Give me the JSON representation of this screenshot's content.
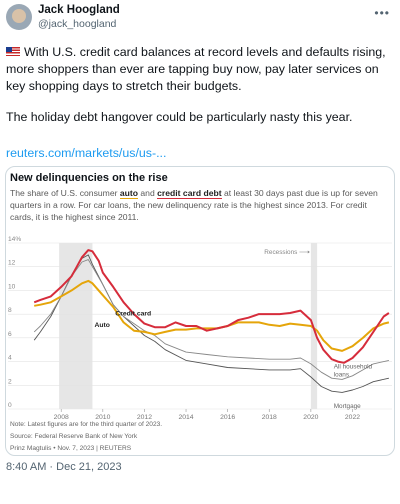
{
  "tweet": {
    "author_name": "Jack Hoogland",
    "author_handle": "@jack_hoogland",
    "more_icon": "more-icon",
    "text_p1": "With U.S. credit card balances at record levels and defaults rising, more shoppers than ever are tapping buy now, pay later services on key shopping days to stretch their budgets.",
    "text_p2": "The holiday debt hangover could be particularly nasty this year.",
    "link_text": "reuters.com/markets/us/us-...",
    "timestamp": "8:40 AM · Dec 21, 2023"
  },
  "card": {
    "title": "New delinquencies on the rise",
    "subtitle_a": "The share of U.S. consumer ",
    "subtitle_auto": "auto",
    "subtitle_b": " and ",
    "subtitle_cc": "credit card debt",
    "subtitle_c": " at least 30 days past due is up for seven quarters in a row. For car loans, the new delinquency rate is the highest since 2013. For credit cards, it is the highest since 2011.",
    "note": "Note: Latest figures are for the third quarter of 2023.",
    "source": "Source: Federal Reserve Bank of New York",
    "credit": "Prinz Magtulis • Nov. 7, 2023 | REUTERS"
  },
  "chart_data": {
    "type": "line",
    "ylim": [
      0,
      14
    ],
    "yticks": [
      "14%",
      "12",
      "10",
      "8",
      "6",
      "4",
      "2",
      "0"
    ],
    "xticks": [
      "2008",
      "2010",
      "2012",
      "2014",
      "2016",
      "2018",
      "2020",
      "2022"
    ],
    "xlim": [
      2006.5,
      2023.9
    ],
    "recession_label": "Recessions",
    "recessions": [
      [
        2007.9,
        2009.5
      ],
      [
        2020.0,
        2020.3
      ]
    ],
    "colors": {
      "credit_card": "#d62c3b",
      "auto": "#e5a50a",
      "all_household": "#888888",
      "mortgage": "#555555",
      "recession": "#e6e6e6"
    },
    "series": [
      {
        "name": "Credit card",
        "x": [
          2006.7,
          2007,
          2007.5,
          2008,
          2008.5,
          2009,
          2009.3,
          2009.5,
          2009.8,
          2010,
          2010.5,
          2011,
          2011.5,
          2012,
          2012.5,
          2013,
          2013.5,
          2014,
          2014.5,
          2015,
          2015.5,
          2016,
          2016.5,
          2017,
          2017.5,
          2018,
          2018.5,
          2019,
          2019.5,
          2020,
          2020.3,
          2020.6,
          2021,
          2021.3,
          2021.6,
          2022,
          2022.5,
          2023,
          2023.5,
          2023.75
        ],
        "values": [
          9.0,
          9.2,
          9.5,
          10.3,
          11.2,
          12.8,
          13.4,
          13.3,
          12.5,
          11.5,
          10.3,
          9.0,
          8.0,
          7.2,
          6.9,
          6.9,
          7.3,
          7.0,
          7.0,
          6.6,
          6.8,
          7.0,
          7.5,
          7.7,
          8.0,
          8.0,
          8.0,
          8.1,
          8.3,
          7.5,
          6.0,
          5.0,
          4.2,
          4.0,
          3.9,
          4.3,
          5.2,
          6.5,
          7.8,
          8.1
        ]
      },
      {
        "name": "Auto",
        "x": [
          2006.7,
          2007,
          2007.5,
          2008,
          2008.5,
          2009,
          2009.3,
          2009.5,
          2010,
          2010.5,
          2011,
          2011.5,
          2012,
          2012.5,
          2013,
          2013.5,
          2014,
          2014.5,
          2015,
          2015.5,
          2016,
          2016.5,
          2017,
          2017.5,
          2018,
          2018.5,
          2019,
          2019.5,
          2020,
          2020.3,
          2020.6,
          2021,
          2021.5,
          2022,
          2022.5,
          2023,
          2023.5,
          2023.75
        ],
        "values": [
          8.7,
          8.8,
          9.0,
          9.5,
          10.0,
          10.6,
          10.8,
          10.6,
          9.6,
          8.6,
          7.3,
          6.6,
          6.5,
          6.3,
          6.5,
          6.7,
          6.7,
          6.8,
          6.8,
          6.8,
          7.0,
          7.3,
          7.3,
          7.3,
          7.1,
          7.0,
          7.2,
          7.1,
          7.0,
          6.6,
          5.8,
          5.1,
          4.9,
          5.3,
          6.0,
          6.8,
          7.2,
          7.3
        ]
      },
      {
        "name": "All household loans",
        "x": [
          2006.7,
          2007,
          2007.5,
          2008,
          2008.5,
          2009,
          2009.3,
          2009.5,
          2010,
          2010.5,
          2011,
          2011.5,
          2012,
          2012.5,
          2013,
          2014,
          2015,
          2016,
          2017,
          2018,
          2019,
          2019.5,
          2020,
          2020.5,
          2021,
          2021.5,
          2022,
          2022.5,
          2023,
          2023.75
        ],
        "values": [
          6.5,
          7.0,
          8.0,
          9.5,
          11.2,
          12.4,
          12.6,
          12.0,
          10.5,
          8.8,
          7.8,
          7.2,
          6.6,
          6.2,
          5.5,
          4.8,
          4.6,
          4.4,
          4.3,
          4.2,
          4.2,
          4.3,
          3.8,
          3.1,
          2.6,
          2.5,
          2.8,
          3.3,
          3.8,
          4.1
        ]
      },
      {
        "name": "Mortgage",
        "x": [
          2006.7,
          2007,
          2007.5,
          2008,
          2008.5,
          2009,
          2009.3,
          2009.5,
          2010,
          2010.5,
          2011,
          2011.5,
          2012,
          2012.5,
          2013,
          2014,
          2015,
          2016,
          2017,
          2018,
          2019,
          2019.5,
          2020,
          2020.5,
          2021,
          2021.5,
          2022,
          2022.5,
          2023,
          2023.75
        ],
        "values": [
          5.8,
          6.5,
          7.8,
          9.5,
          11.3,
          12.7,
          13.0,
          12.2,
          10.5,
          8.8,
          7.8,
          7.0,
          6.2,
          5.7,
          5.0,
          4.1,
          3.8,
          3.5,
          3.4,
          3.3,
          3.3,
          3.4,
          2.7,
          1.9,
          1.5,
          1.4,
          1.6,
          1.9,
          2.3,
          2.6
        ]
      }
    ],
    "labels": {
      "credit_card": "Credit card",
      "auto": "Auto",
      "all_household_1": "All household",
      "all_household_2": "loans",
      "mortgage": "Mortgage"
    }
  }
}
